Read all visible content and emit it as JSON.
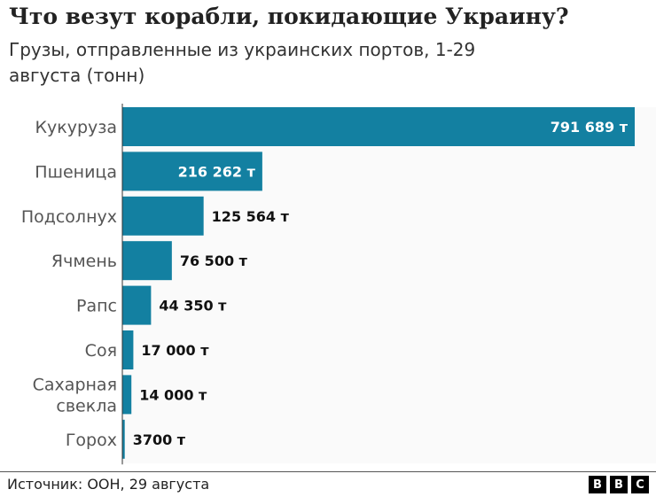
{
  "chart_data": {
    "type": "bar",
    "orientation": "horizontal",
    "title": "Что везут корабли, покидающие Украину?",
    "subtitle": "Грузы, отправленные из украинских портов, 1-29 августа (тонн)",
    "categories": [
      "Кукуруза",
      "Пшеница",
      "Подсолнух",
      "Ячмень",
      "Рапс",
      "Соя",
      "Сахарная свекла",
      "Горох"
    ],
    "category_lines": [
      [
        "Кукуруза"
      ],
      [
        "Пшеница"
      ],
      [
        "Подсолнух"
      ],
      [
        "Ячмень"
      ],
      [
        "Рапс"
      ],
      [
        "Соя"
      ],
      [
        "Сахарная",
        "свекла"
      ],
      [
        "Горох"
      ]
    ],
    "values": [
      791689,
      216262,
      125564,
      76500,
      44350,
      17000,
      14000,
      3700
    ],
    "data_labels": [
      "791 689 т",
      "216 262 т",
      "125 564 т",
      "76 500 т",
      "44 350 т",
      "17 000 т",
      "14 000 т",
      "3700 т"
    ],
    "xlim": [
      0,
      791689
    ],
    "grid": false,
    "bar_color": "#1380A1"
  },
  "footer": {
    "source": "Источник: ООН, 29 августа",
    "logo": [
      "B",
      "B",
      "C"
    ]
  }
}
